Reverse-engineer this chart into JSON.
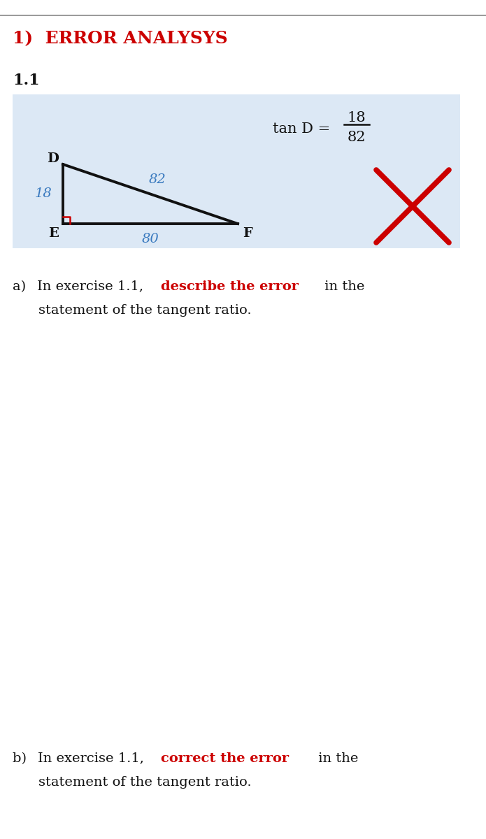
{
  "title": "1)  ERROR ANALYSYS",
  "title_color": "#cc0000",
  "section_label": "1.1",
  "bg_color": "#ffffff",
  "box_bg_color": "#dce8f5",
  "numerator": "18",
  "denominator": "82",
  "label_D": "D",
  "label_E": "E",
  "label_F": "F",
  "side_DE": "18",
  "side_DF": "82",
  "side_EF": "80",
  "label_color_sides": "#3a7abf",
  "label_color_vertices": "#111111",
  "right_angle_color": "#cc0000",
  "cross_color": "#cc0000",
  "highlight_color": "#cc0000",
  "text_color": "#111111",
  "top_border_color": "#888888",
  "part_a_highlight": "describe the error",
  "part_b_highlight": "correct the error",
  "part_line2": "statement of the tangent ratio."
}
